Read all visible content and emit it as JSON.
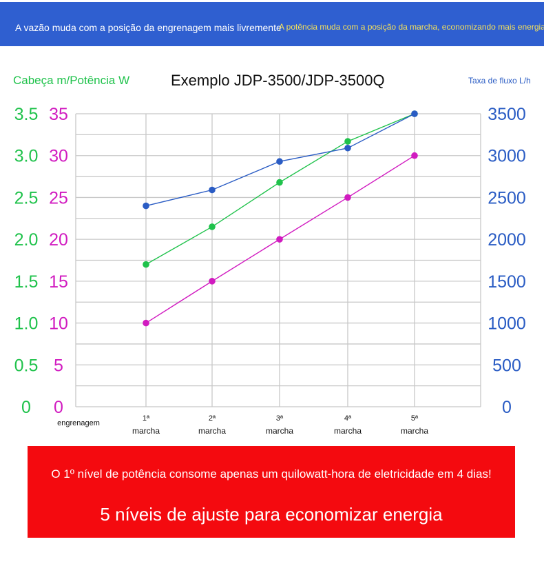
{
  "banner": {
    "left_text": "A vazão muda com a posição da engrenagem mais livremente",
    "right_text": "A potência muda com a posição da marcha, economizando mais energia"
  },
  "colors": {
    "head": "#1fc24b",
    "power": "#d11bc0",
    "flow": "#2a5cc4",
    "banner": "#2f5fd0",
    "footer": "#f40a0f"
  },
  "chart_data": {
    "type": "line",
    "title": "Exemplo JDP-3500/JDP-3500Q",
    "left_axis_label": "Cabeça m/Potência W",
    "right_axis_label": "Taxa de fluxo L/h",
    "x_axis_label": "engrenagem",
    "categories": [
      [
        "1ª",
        "marcha"
      ],
      [
        "2ª",
        "marcha"
      ],
      [
        "3ª",
        "marcha"
      ],
      [
        "4ª",
        "marcha"
      ],
      [
        "5ª",
        "marcha"
      ]
    ],
    "head_ticks": [
      "0",
      "0.5",
      "1.0",
      "1.5",
      "2.0",
      "2.5",
      "3.0",
      "3.5"
    ],
    "power_ticks": [
      "0",
      "5",
      "10",
      "15",
      "20",
      "25",
      "30",
      "35"
    ],
    "flow_ticks": [
      "0",
      "500",
      "1000",
      "1500",
      "2000",
      "2500",
      "3000",
      "3500"
    ],
    "ylim_head": [
      0,
      3.5
    ],
    "ylim_power": [
      0,
      35
    ],
    "ylim_flow": [
      0,
      3500
    ],
    "grid": true,
    "series": [
      {
        "name": "Potência W",
        "axis": "power",
        "color": "#d11bc0",
        "values": [
          10,
          15,
          20,
          25,
          30
        ]
      },
      {
        "name": "Cabeça m",
        "axis": "head",
        "color": "#1fc24b",
        "values": [
          1.7,
          2.15,
          2.68,
          3.17,
          3.5
        ]
      },
      {
        "name": "Taxa de fluxo L/h",
        "axis": "flow",
        "color": "#2a5cc4",
        "values": [
          2400,
          2590,
          2930,
          3090,
          3500
        ]
      }
    ]
  },
  "footer": {
    "line1": "O 1º nível de potência consome apenas um quilowatt-hora de eletricidade em 4 dias!",
    "line2": "5 níveis de ajuste para economizar energia"
  }
}
